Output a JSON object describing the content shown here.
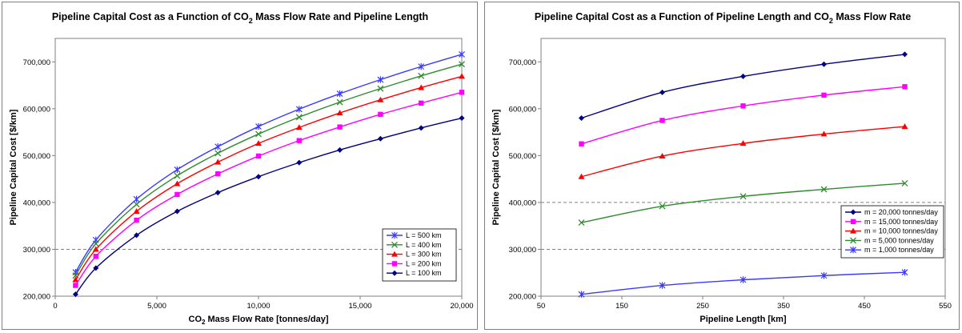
{
  "chart_data": [
    {
      "type": "line",
      "title_pre": "Pipeline Capital Cost as a Function of CO",
      "title_sub": "2",
      "title_post": " Mass Flow Rate and Pipeline Length",
      "xlabel_pre": "CO",
      "xlabel_sub": "2",
      "xlabel_post": " Mass Flow Rate [tonnes/day]",
      "ylabel": "Pipeline Capital Cost [$/km]",
      "xlim": [
        0,
        20000
      ],
      "ylim": [
        200000,
        750000
      ],
      "xticks": [
        0,
        5000,
        10000,
        15000,
        20000
      ],
      "xtick_labels": [
        "0",
        "5,000",
        "10,000",
        "15,000",
        "20,000"
      ],
      "yticks": [
        200000,
        300000,
        400000,
        500000,
        600000,
        700000
      ],
      "ytick_labels": [
        "200,000",
        "300,000",
        "400,000",
        "500,000",
        "600,000",
        "700,000"
      ],
      "grid": "horizontal dashed at 300,000",
      "legend_position": "bottom-right",
      "x": [
        1000,
        2000,
        4000,
        6000,
        8000,
        10000,
        12000,
        14000,
        16000,
        18000,
        20000
      ],
      "series": [
        {
          "name": "L = 500 km",
          "color": "#3a3aff",
          "marker": "asterisk",
          "values": [
            251000,
            320000,
            407000,
            470000,
            519000,
            562000,
            599000,
            632000,
            662000,
            690000,
            716000
          ]
        },
        {
          "name": "L = 400 km",
          "color": "#2e8b2e",
          "marker": "x",
          "values": [
            244000,
            312000,
            396000,
            457000,
            505000,
            546000,
            582000,
            614000,
            643000,
            670000,
            695000
          ]
        },
        {
          "name": "L = 300 km",
          "color": "#ff0000",
          "marker": "triangle",
          "values": [
            235000,
            300000,
            381000,
            440000,
            486000,
            526000,
            560000,
            591000,
            619000,
            645000,
            669000
          ]
        },
        {
          "name": "L = 200 km",
          "color": "#ff00ff",
          "marker": "square",
          "values": [
            223000,
            285000,
            362000,
            417000,
            461000,
            499000,
            532000,
            561000,
            588000,
            612000,
            635000
          ]
        },
        {
          "name": "L = 100 km",
          "color": "#000080",
          "marker": "diamond",
          "values": [
            204000,
            260000,
            330000,
            381000,
            421000,
            455000,
            485000,
            512000,
            536000,
            559000,
            580000
          ]
        }
      ]
    },
    {
      "type": "line",
      "title_pre": "Pipeline Capital Cost as a Function of Pipeline Length and CO",
      "title_sub": "2",
      "title_post": " Mass Flow Rate",
      "xlabel": "Pipeline Length [km]",
      "ylabel": "Pipeline Capital Cost [$/km]",
      "xlim": [
        50,
        550
      ],
      "ylim": [
        200000,
        750000
      ],
      "xticks": [
        50,
        150,
        250,
        350,
        450,
        550
      ],
      "xtick_labels": [
        "50",
        "150",
        "250",
        "350",
        "450",
        "550"
      ],
      "yticks": [
        200000,
        300000,
        400000,
        500000,
        600000,
        700000
      ],
      "ytick_labels": [
        "200,000",
        "300,000",
        "400,000",
        "500,000",
        "600,000",
        "700,000"
      ],
      "grid": "horizontal dashed at 300,000 and 400,000",
      "legend_position": "bottom-right",
      "x": [
        100,
        200,
        300,
        400,
        500
      ],
      "series": [
        {
          "name": "m = 20,000 tonnes/day",
          "color": "#000080",
          "marker": "diamond",
          "values": [
            580000,
            635000,
            669000,
            695000,
            716000
          ]
        },
        {
          "name": "m = 15,000 tonnes/day",
          "color": "#ff00ff",
          "marker": "square",
          "values": [
            525000,
            575000,
            606000,
            629000,
            647000
          ]
        },
        {
          "name": "m = 10,000 tonnes/day",
          "color": "#ff0000",
          "marker": "triangle",
          "values": [
            455000,
            499000,
            526000,
            546000,
            562000
          ]
        },
        {
          "name": "m = 5,000 tonnes/day",
          "color": "#2e8b2e",
          "marker": "x",
          "values": [
            357000,
            392000,
            413000,
            428000,
            441000
          ]
        },
        {
          "name": "m = 1,000 tonnes/day",
          "color": "#3a3aff",
          "marker": "asterisk",
          "values": [
            204000,
            223000,
            235000,
            244000,
            251000
          ]
        }
      ]
    }
  ]
}
